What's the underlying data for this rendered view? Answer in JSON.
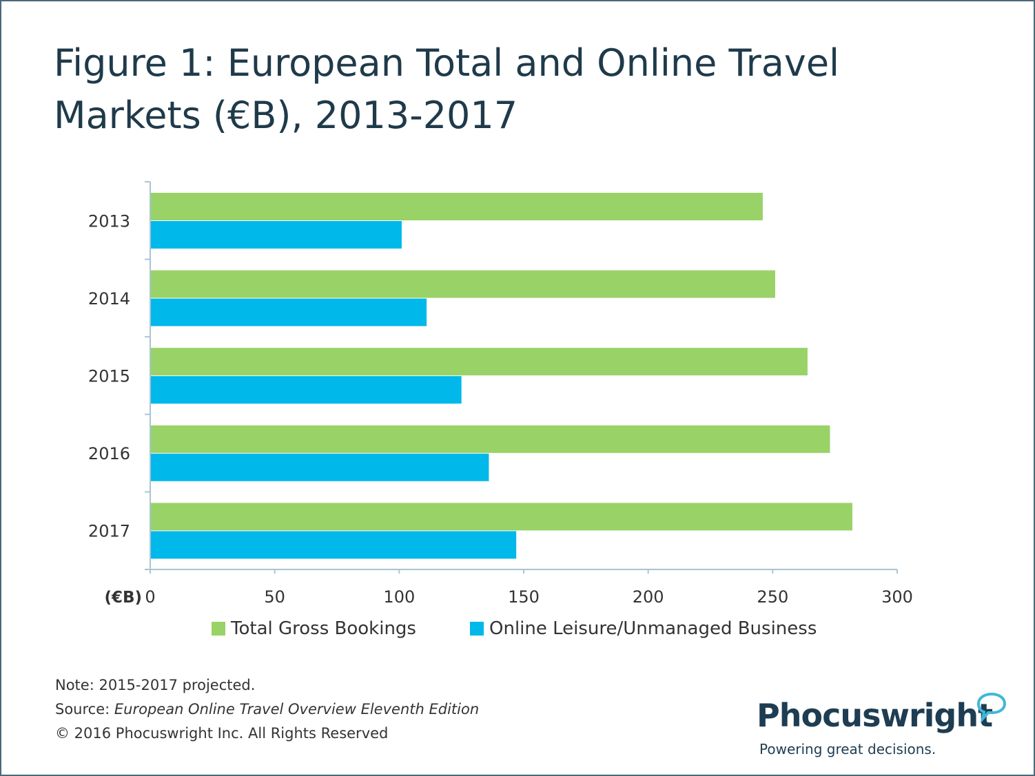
{
  "title": "Figure 1: European Total and Online Travel Markets (€B), 2013-2017",
  "unit_label": "(€B)",
  "notes": {
    "note": "Note: 2015-2017 projected.",
    "source_prefix": "Source: ",
    "source_title": "European Online Travel Overview Eleventh Edition",
    "copyright": "© 2016 Phocuswright Inc. All Rights Reserved"
  },
  "logo": {
    "name": "Phocuswright",
    "tagline": "Powering great decisions."
  },
  "colors": {
    "total": "#99d266",
    "online": "#00b8ea",
    "axis": "#a9c4d4",
    "text": "#333333",
    "title": "#1f3a4a"
  },
  "chart_data": {
    "type": "bar",
    "orientation": "horizontal",
    "categories": [
      "2013",
      "2014",
      "2015",
      "2016",
      "2017"
    ],
    "series": [
      {
        "name": "Total Gross Bookings",
        "values": [
          246,
          251,
          264,
          273,
          282
        ]
      },
      {
        "name": "Online Leisure/Unmanaged Business",
        "values": [
          101,
          111,
          125,
          136,
          147
        ]
      }
    ],
    "xlim": [
      0,
      300
    ],
    "xticks": [
      "0",
      "50",
      "100",
      "150",
      "200",
      "250",
      "300"
    ],
    "legend_position": "bottom",
    "grid": false
  }
}
